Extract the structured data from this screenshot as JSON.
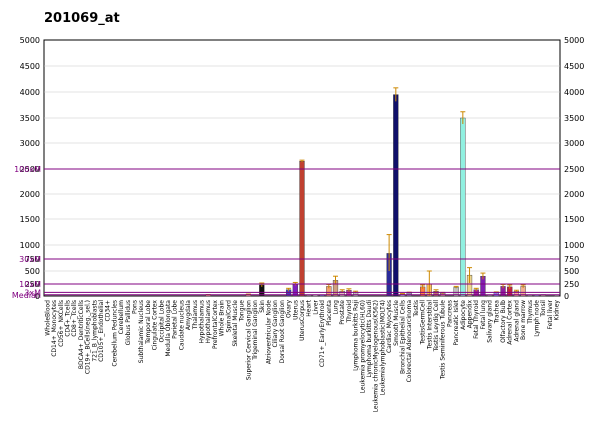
{
  "chart_data": {
    "type": "bar",
    "title": "201069_at",
    "y_ticks": [
      {
        "value": 0,
        "label": "0"
      },
      {
        "value": 250,
        "label": "250"
      },
      {
        "value": 500,
        "label": "500"
      },
      {
        "value": 750,
        "label": "750"
      },
      {
        "value": 1000,
        "label": "1000"
      },
      {
        "value": 1500,
        "label": "1500"
      },
      {
        "value": 2000,
        "label": "2000"
      },
      {
        "value": 2500,
        "label": "2500"
      },
      {
        "value": 3000,
        "label": "3000"
      },
      {
        "value": 3500,
        "label": "3500"
      },
      {
        "value": 4000,
        "label": "4000"
      },
      {
        "value": 4500,
        "label": "4500"
      },
      {
        "value": 5000,
        "label": "5000"
      }
    ],
    "reference_lines": [
      {
        "label": "100xM",
        "value": 2500,
        "color": "#800080"
      },
      {
        "label": "30xM",
        "value": 750,
        "color": "#800080"
      },
      {
        "label": "10xM",
        "value": 250,
        "color": "#800080"
      },
      {
        "label": "3xM",
        "value": 75,
        "color": "#800080"
      },
      {
        "label": "Median",
        "value": 25,
        "color": "#800080"
      }
    ],
    "categories": [
      "WholeBlood",
      "CD14+_Monocytes",
      "CD56+_NKCells",
      "CD4+_Tcells",
      "CD8+_Tcells",
      "BDCA4+_DentriticCells",
      "CD19+_BCells(neg._sel.)",
      "721_B_lymphoblasts",
      "CD105+_Endothelial",
      "CD34+",
      "Cerebellum Peduncles",
      "Cerebellum",
      "Globus Pallidus",
      "Pons",
      "Subthalamic Nucleus",
      "Temporal Lobe",
      "Cingulate Cortex",
      "Occipital Lobe",
      "Medulla Oblongata",
      "Parietal Lobe",
      "Caudate nucleus",
      "Amygdala",
      "Thalamus",
      "Hypothalamus",
      "Hypothalamus",
      "PrefrontalCortex",
      "Whole Brain",
      "SpinalCord",
      "Skeletal Muscle",
      "Tongue",
      "Superior Cervical Ganglion",
      "Trigeminal Ganglion",
      "Skin",
      "Atrioventricular Node",
      "Ciliary Ganglion",
      "Dorsal Root Ganglion",
      "Ovary",
      "Uterus",
      "UterusCorpus",
      "Heart",
      "Liver",
      "CD71+_EarlyErythroid",
      "Placenta",
      "Lung",
      "Prostate",
      "Thyroid",
      "Lymphoma burkitts Raji",
      "Leukemia promyelocytic(HL60)",
      "Lymphoma burkitts Daudi",
      "Leukemia chronicMyelogenous(K562)",
      "Leukemialymphoblastic(MOLT4)",
      "Cardiac Myocytes",
      "Smooth Muscle",
      "Bronchial Epithelial Cells",
      "Colorectal Adenocarcinoma",
      "Testis",
      "TestisGermCell",
      "Testis Interstitial",
      "Testis Leydig Cell",
      "Testis Seminiferous Tubule",
      "Pancreas",
      "Pancreatic Islet",
      "Adipocyte",
      "Appendix",
      "Fetal Thyroid",
      "Fetal lung",
      "Salivary gland",
      "Trachea",
      "Olfactory Bulb",
      "Adrenal Cortex",
      "Adrenal gland",
      "Bone marrow",
      "Thymus",
      "Lymph node",
      "Tonsil",
      "Fetal liver",
      "Kidney"
    ],
    "values": [
      0,
      0,
      0,
      0,
      0,
      0,
      0,
      0,
      0,
      0,
      0,
      0,
      0,
      0,
      0,
      0,
      0,
      0,
      0,
      0,
      0,
      0,
      0,
      0,
      25,
      0,
      0,
      0,
      0,
      0,
      35,
      0,
      230,
      0,
      0,
      0,
      130,
      250,
      2650,
      15,
      25,
      20,
      200,
      320,
      100,
      120,
      80,
      0,
      0,
      0,
      0,
      850,
      3950,
      40,
      70,
      0,
      190,
      250,
      100,
      60,
      0,
      180,
      3500,
      420,
      130,
      400,
      15,
      70,
      200,
      190,
      100,
      200,
      15,
      20,
      30,
      0,
      15
    ],
    "errors": [
      0,
      0,
      0,
      0,
      0,
      0,
      0,
      0,
      0,
      0,
      0,
      0,
      0,
      0,
      0,
      0,
      0,
      0,
      0,
      0,
      0,
      0,
      0,
      0,
      5,
      0,
      0,
      0,
      0,
      0,
      5,
      0,
      40,
      0,
      0,
      0,
      30,
      30,
      20,
      0,
      0,
      0,
      40,
      80,
      30,
      30,
      20,
      0,
      0,
      0,
      0,
      350,
      130,
      10,
      10,
      0,
      40,
      250,
      30,
      15,
      0,
      20,
      120,
      150,
      30,
      60,
      0,
      15,
      40,
      40,
      20,
      30,
      0,
      0,
      0,
      0,
      0
    ],
    "colors": [
      "#b0b0ff",
      "#b0b0ff",
      "#b0b0ff",
      "#b0b0ff",
      "#b0b0ff",
      "#b0b0ff",
      "#b0b0ff",
      "#b0b0ff",
      "#b0b0ff",
      "#b0b0ff",
      "#d0d0d0",
      "#d0d0d0",
      "#d0d0d0",
      "#d0d0d0",
      "#d0d0d0",
      "#d0d0d0",
      "#d0d0d0",
      "#d0d0d0",
      "#d0d0d0",
      "#d0d0d0",
      "#d0d0d0",
      "#d0d0d0",
      "#d0d0d0",
      "#d0d0d0",
      "#ff9999",
      "#d0d0d0",
      "#d0d0d0",
      "#d0d0d0",
      "#d0d0d0",
      "#d0d0d0",
      "#ffb0a0",
      "#d0d0d0",
      "#101010",
      "#d0d0d0",
      "#d0d0d0",
      "#d0d0d0",
      "#4040c0",
      "#8020c0",
      "#c04030",
      "#d0d0d0",
      "#d0d0d0",
      "#8080ff",
      "#f4a070",
      "#d0a080",
      "#e0c0c0",
      "#c040a0",
      "#c0c0c0",
      "#d0d0d0",
      "#d0d0d0",
      "#d0d0d0",
      "#d0d0d0",
      "#2a2a9a",
      "#10106a",
      "#c0c0ff",
      "#9090b0",
      "#d0d0d0",
      "#ff8040",
      "#ffc060",
      "#c07070",
      "#e0a0a0",
      "#d0d0d0",
      "#c0c0c0",
      "#90f0e0",
      "#f0d890",
      "#a020a0",
      "#8020b0",
      "#d0d0d0",
      "#9080ff",
      "#9020a0",
      "#c02040",
      "#ffa0a0",
      "#f0b090",
      "#d0d0d0",
      "#a0a0ff",
      "#c0a0a0",
      "#d0d0d0",
      "#e0e0e0"
    ]
  }
}
